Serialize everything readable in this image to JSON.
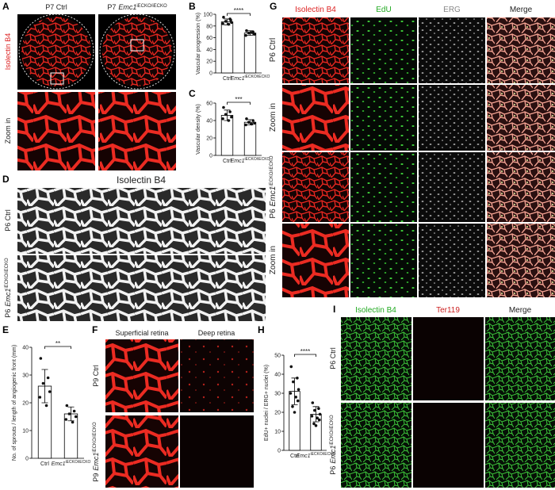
{
  "panel_letters": [
    "A",
    "B",
    "C",
    "D",
    "E",
    "F",
    "G",
    "H",
    "I"
  ],
  "panel_a": {
    "ctrl": "P7 Ctrl",
    "mutant": {
      "stage": "P7",
      "gene": "Emc1",
      "sup": "iECKO/iECKO"
    },
    "stain": "Isolectin B4",
    "zoom": "Zoom in"
  },
  "panel_d": {
    "stain": "Isolectin B4",
    "ctrl": "P6 Ctrl",
    "mutant": {
      "stage": "P6",
      "gene": "Emc1",
      "sup": "iECKO/iECKO"
    }
  },
  "panel_f": {
    "columns": [
      "Superficial retina",
      "Deep retina"
    ],
    "ctrl": "P9 Ctrl",
    "mutant": {
      "stage": "P9",
      "gene": "Emc1",
      "sup": "iECKO/iECKO"
    }
  },
  "panel_g": {
    "columns": [
      "Isolectin B4",
      "EdU",
      "ERG",
      "Merge"
    ],
    "ctrl": "P6 Ctrl",
    "mutant": {
      "stage": "P6",
      "gene": "Emc1",
      "sup": "iECKO/iECKO"
    },
    "zoom": "Zoom in"
  },
  "panel_i": {
    "columns": [
      "Isolectin B4",
      "Ter119",
      "Merge"
    ],
    "ctrl": "P6 Ctrl",
    "mutant": {
      "stage": "P6",
      "gene": "Emc1",
      "sup": "iECKO/iECKO"
    }
  },
  "chart_data": [
    {
      "type": "bar",
      "ylabel": "Vascular progression (%)",
      "categories": [
        "Ctrl",
        "Emc1"
      ],
      "category_superscripts": [
        null,
        "iECKO/iECKO"
      ],
      "values": [
        87,
        68
      ],
      "errors": [
        5,
        4
      ],
      "points": [
        [
          95,
          92,
          88,
          86,
          84,
          83,
          90
        ],
        [
          72,
          70,
          68,
          66,
          64,
          69,
          67
        ]
      ],
      "significance": "****",
      "ylim": [
        0,
        100
      ],
      "yticks": [
        0,
        20,
        40,
        60,
        80,
        100
      ]
    },
    {
      "type": "bar",
      "ylabel": "Vascular density (%)",
      "categories": [
        "Ctrl",
        "Emc1"
      ],
      "category_superscripts": [
        null,
        "iECKO/iECKO"
      ],
      "values": [
        46,
        38
      ],
      "errors": [
        6,
        3
      ],
      "points": [
        [
          55,
          50,
          47,
          44,
          42,
          40
        ],
        [
          42,
          40,
          38,
          37,
          35,
          36
        ]
      ],
      "significance": "***",
      "ylim": [
        0,
        60
      ],
      "yticks": [
        0,
        20,
        40,
        60
      ]
    },
    {
      "type": "bar",
      "ylabel": "No. of sprouts / length of angiogenic front (mm)",
      "categories": [
        "Ctrl",
        "Emc1"
      ],
      "category_superscripts": [
        null,
        "iECKO/iECKO"
      ],
      "values": [
        26,
        16
      ],
      "errors": [
        6,
        2.5
      ],
      "points": [
        [
          36,
          29,
          27,
          24,
          22,
          19
        ],
        [
          19,
          17,
          16,
          15,
          14,
          13
        ]
      ],
      "significance": "**",
      "ylim": [
        0,
        40
      ],
      "yticks": [
        0,
        10,
        20,
        30,
        40
      ]
    },
    {
      "type": "bar",
      "ylabel": "EdU+ nuclei / ERG+ nuclei (%)",
      "categories": [
        "Ctrl",
        "Emc1"
      ],
      "category_superscripts": [
        null,
        "iECKO/iECKO"
      ],
      "values": [
        31,
        19
      ],
      "errors": [
        7,
        4
      ],
      "points": [
        [
          44,
          38,
          36,
          32,
          30,
          28,
          26,
          23,
          20
        ],
        [
          25,
          22,
          21,
          19,
          18,
          17,
          16,
          14,
          13
        ]
      ],
      "significance": "****",
      "ylim": [
        0,
        50
      ],
      "yticks": [
        0,
        10,
        20,
        30,
        40,
        50
      ]
    }
  ]
}
